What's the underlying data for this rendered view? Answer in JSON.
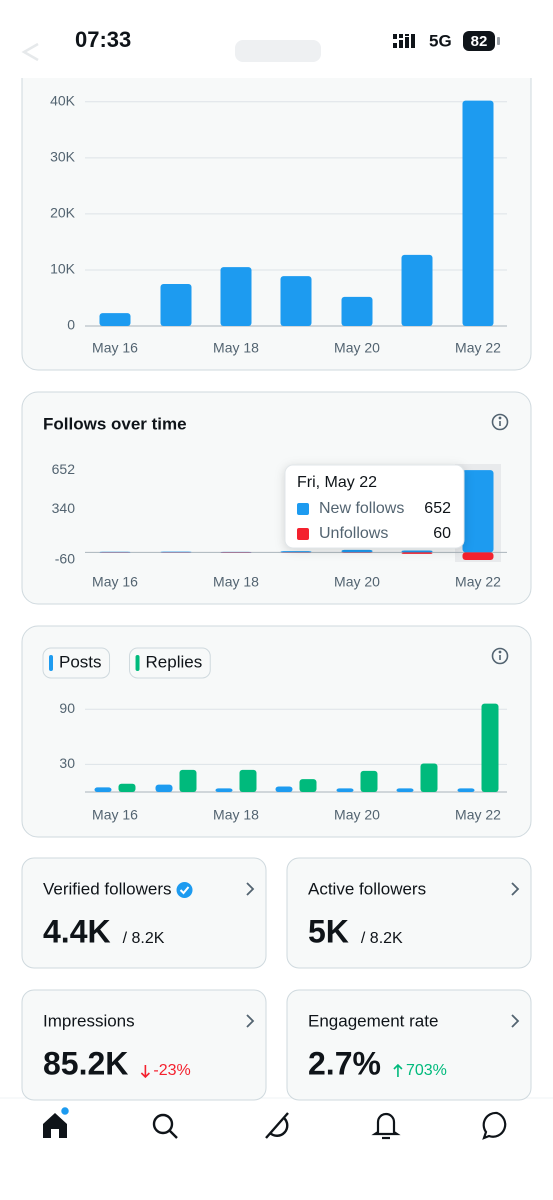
{
  "status_bar": {
    "time": "07:33",
    "network": "5G",
    "battery": "82"
  },
  "chart_data": [
    {
      "type": "bar",
      "categories": [
        "May 16",
        null,
        "May 18",
        null,
        "May 20",
        null,
        "May 22"
      ],
      "series": [
        {
          "color": "#1d9bf0",
          "values": [
            2300,
            7500,
            10500,
            8900,
            5200,
            12700,
            40200
          ]
        }
      ],
      "ylim": [
        0,
        40500
      ],
      "yticks": [
        0,
        {
          "value": 10000,
          "label": "10K"
        },
        {
          "value": 20000,
          "label": "20K"
        },
        {
          "value": 30000,
          "label": "30K"
        },
        {
          "value": 40000,
          "label": "40K"
        }
      ],
      "grid": true
    },
    {
      "type": "bar",
      "title": "Follows over time",
      "tooltip_title": "Fri, May 22",
      "categories": [
        "May 16",
        null,
        "May 18",
        null,
        "May 20",
        null,
        "May 22"
      ],
      "series": [
        {
          "name": "New follows",
          "color": "#1d9bf0",
          "values": [
            5,
            6,
            4,
            10,
            20,
            15,
            652
          ]
        },
        {
          "name": "Unfollows",
          "color": "#f4212e",
          "direction": "down",
          "values": [
            2,
            2,
            3,
            2,
            3,
            12,
            60
          ]
        }
      ],
      "ylim": [
        -60,
        700
      ],
      "yticks": [
        -60,
        340,
        652
      ],
      "grid": false
    },
    {
      "type": "bar",
      "legend": "top-left",
      "categories": [
        "May 16",
        null,
        "May 18",
        null,
        "May 20",
        null,
        "May 22"
      ],
      "series": [
        {
          "name": "Posts",
          "color": "#1d9bf0",
          "values": [
            5,
            8,
            4,
            6,
            4,
            4,
            4
          ]
        },
        {
          "name": "Replies",
          "color": "#00ba7c",
          "values": [
            9,
            24,
            24,
            14,
            23,
            31,
            96
          ]
        }
      ],
      "ylim": [
        0,
        100
      ],
      "yticks": [
        30,
        90
      ],
      "grid": true
    }
  ],
  "cards": [
    {
      "title": "Verified followers",
      "value": "4.4K",
      "total": "/ 8.2K"
    },
    {
      "title": "Active followers",
      "value": "5K",
      "total": "/ 8.2K"
    },
    {
      "title": "Impressions",
      "value": "85.2K",
      "change": "-23%",
      "trend": "down"
    },
    {
      "title": "Engagement rate",
      "value": "2.7%",
      "change": "703%",
      "trend": "up"
    }
  ]
}
